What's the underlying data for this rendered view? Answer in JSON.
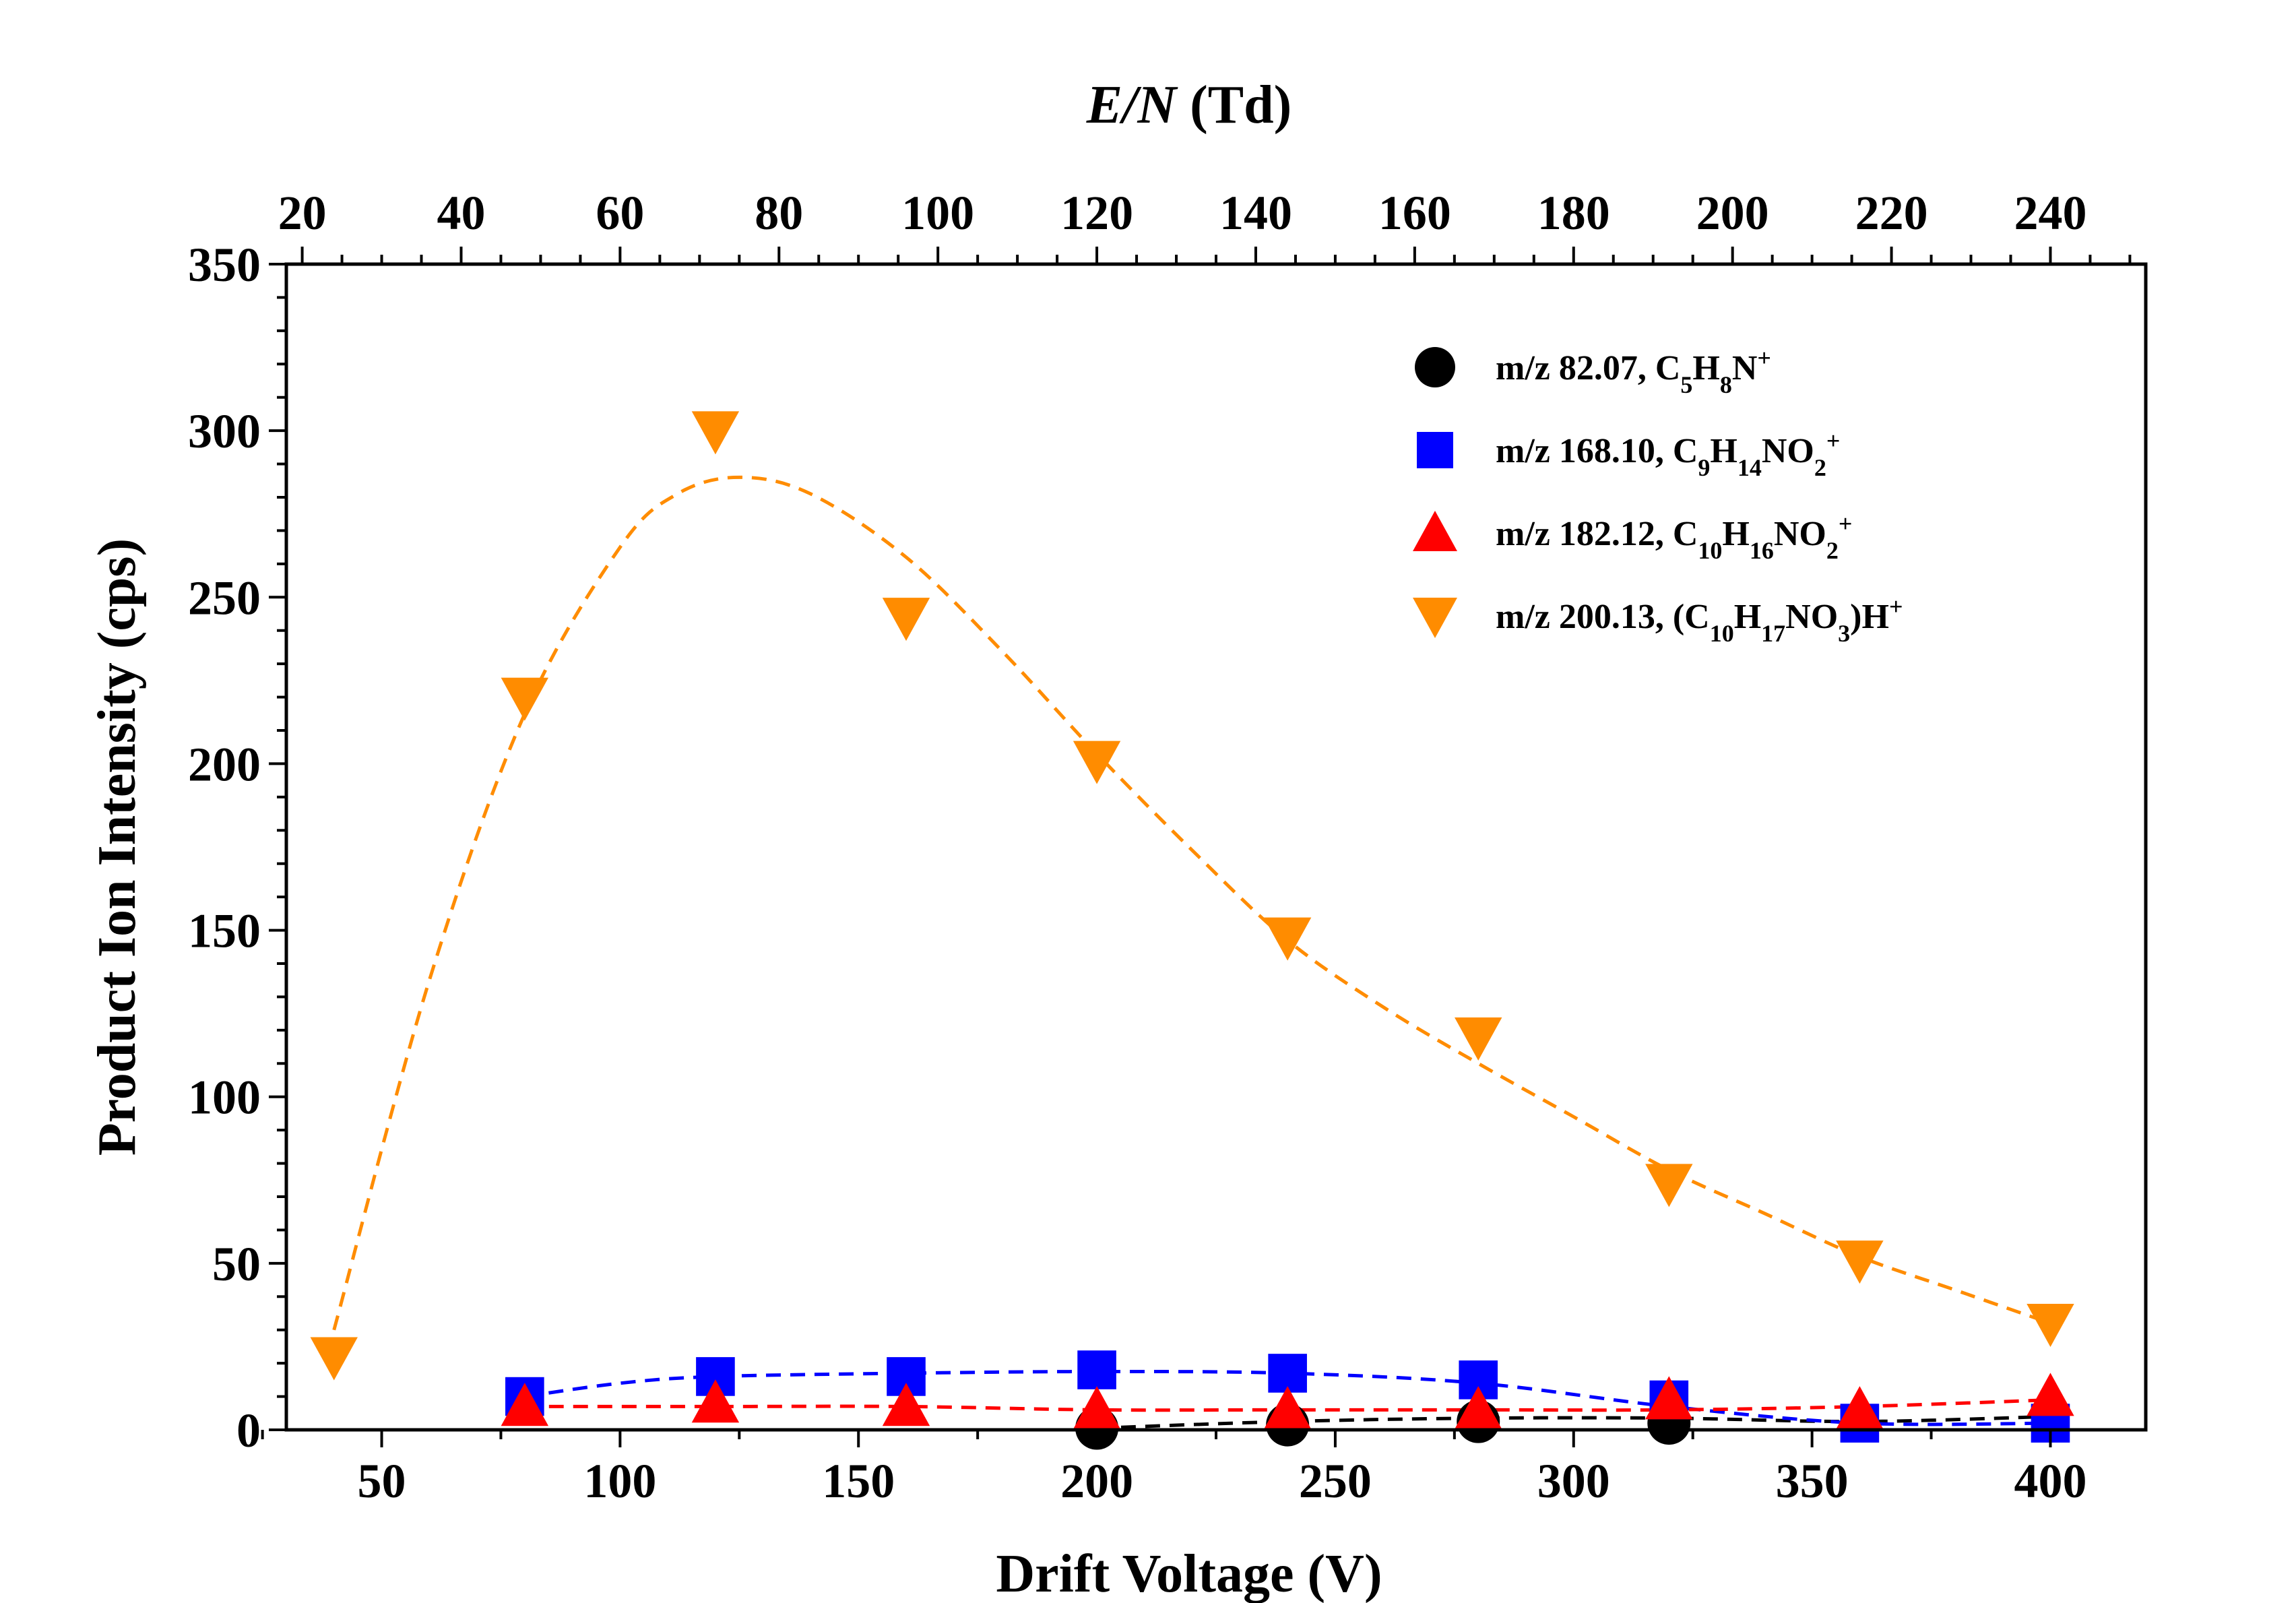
{
  "chart_data": {
    "type": "scatter",
    "xlabel": "Drift Voltage (V)",
    "ylabel": "Product Ion Intensity (cps)",
    "x2label_italic": "E/N",
    "x2label_rest": " (Td)",
    "xlim": [
      30,
      420
    ],
    "ylim": [
      0,
      350
    ],
    "x2lim": [
      18,
      252
    ],
    "x_ticks": [
      50,
      100,
      150,
      200,
      250,
      300,
      350,
      400
    ],
    "y_ticks": [
      0,
      50,
      100,
      150,
      200,
      250,
      300,
      350
    ],
    "x2_ticks": [
      20,
      40,
      60,
      80,
      100,
      120,
      140,
      160,
      180,
      200,
      220,
      240
    ],
    "grid": false,
    "legend_position": "top-right",
    "series": [
      {
        "name": "m/z 82.07, C5H8N+",
        "legend": [
          {
            "t": "m/z 82.07, C"
          },
          {
            "t": "5",
            "s": "sub"
          },
          {
            "t": "H"
          },
          {
            "t": "8",
            "s": "sub"
          },
          {
            "t": "N"
          },
          {
            "t": "+",
            "s": "sup"
          }
        ],
        "marker": "circle",
        "color": "#000000",
        "x": [
          200,
          240,
          280,
          320
        ],
        "y": [
          0.5,
          1.5,
          2.5,
          2
        ],
        "curve_x": [
          200,
          240,
          280,
          320,
          360,
          400
        ],
        "curve_y": [
          0.5,
          2.5,
          3.5,
          3.5,
          2.5,
          4
        ]
      },
      {
        "name": "m/z 168.10, C9H14NO2+",
        "legend": [
          {
            "t": "m/z 168.10, C"
          },
          {
            "t": "9",
            "s": "sub"
          },
          {
            "t": "H"
          },
          {
            "t": "14",
            "s": "sub"
          },
          {
            "t": "NO"
          },
          {
            "t": "2",
            "s": "sub"
          },
          {
            "t": "+",
            "s": "sup"
          }
        ],
        "marker": "square",
        "color": "#0000ff",
        "x": [
          80,
          120,
          160,
          200,
          240,
          280,
          320,
          360,
          400
        ],
        "y": [
          10,
          16,
          16,
          18,
          17,
          15,
          9,
          2,
          2
        ],
        "curve_x": [
          80,
          100,
          120,
          160,
          200,
          240,
          280,
          320,
          360,
          400
        ],
        "curve_y": [
          10,
          14,
          16,
          17,
          17.5,
          17,
          14,
          7,
          2,
          2
        ]
      },
      {
        "name": "m/z 182.12, C10H16NO2+",
        "legend": [
          {
            "t": "m/z 182.12, C"
          },
          {
            "t": "10",
            "s": "sub"
          },
          {
            "t": "H"
          },
          {
            "t": "16",
            "s": "sub"
          },
          {
            "t": "NO"
          },
          {
            "t": "2",
            "s": "sub"
          },
          {
            "t": "+",
            "s": "sup"
          }
        ],
        "marker": "triangle-up",
        "color": "#ff0000",
        "x": [
          80,
          120,
          160,
          200,
          240,
          280,
          320,
          360,
          400
        ],
        "y": [
          7,
          8,
          7,
          6,
          6,
          6,
          9,
          6,
          10
        ],
        "curve_x": [
          80,
          120,
          160,
          200,
          240,
          280,
          320,
          360,
          400
        ],
        "curve_y": [
          7,
          7,
          7,
          6,
          6,
          6,
          6,
          7,
          9
        ]
      },
      {
        "name": "m/z 200.13, (C10H17NO3)H+",
        "legend": [
          {
            "t": "m/z 200.13, (C"
          },
          {
            "t": "10",
            "s": "sub"
          },
          {
            "t": "H"
          },
          {
            "t": "17",
            "s": "sub"
          },
          {
            "t": "NO"
          },
          {
            "t": "3",
            "s": "sub"
          },
          {
            "t": ")H"
          },
          {
            "t": "+",
            "s": "sup"
          }
        ],
        "marker": "triangle-down",
        "color": "#ff8c00",
        "x": [
          40,
          80,
          120,
          160,
          200,
          240,
          280,
          320,
          360,
          400
        ],
        "y": [
          22,
          220,
          300,
          244,
          201,
          148,
          118,
          74,
          51,
          32
        ],
        "curve_x": [
          40,
          60,
          80,
          100,
          112,
          125,
          140,
          160,
          180,
          200,
          220,
          240,
          260,
          280,
          300,
          320,
          340,
          360,
          380,
          400
        ],
        "curve_y": [
          30,
          135,
          215,
          265,
          281,
          286,
          281,
          262,
          234,
          203,
          174,
          147,
          127,
          110,
          94,
          78,
          65,
          52,
          42,
          32
        ]
      }
    ]
  }
}
